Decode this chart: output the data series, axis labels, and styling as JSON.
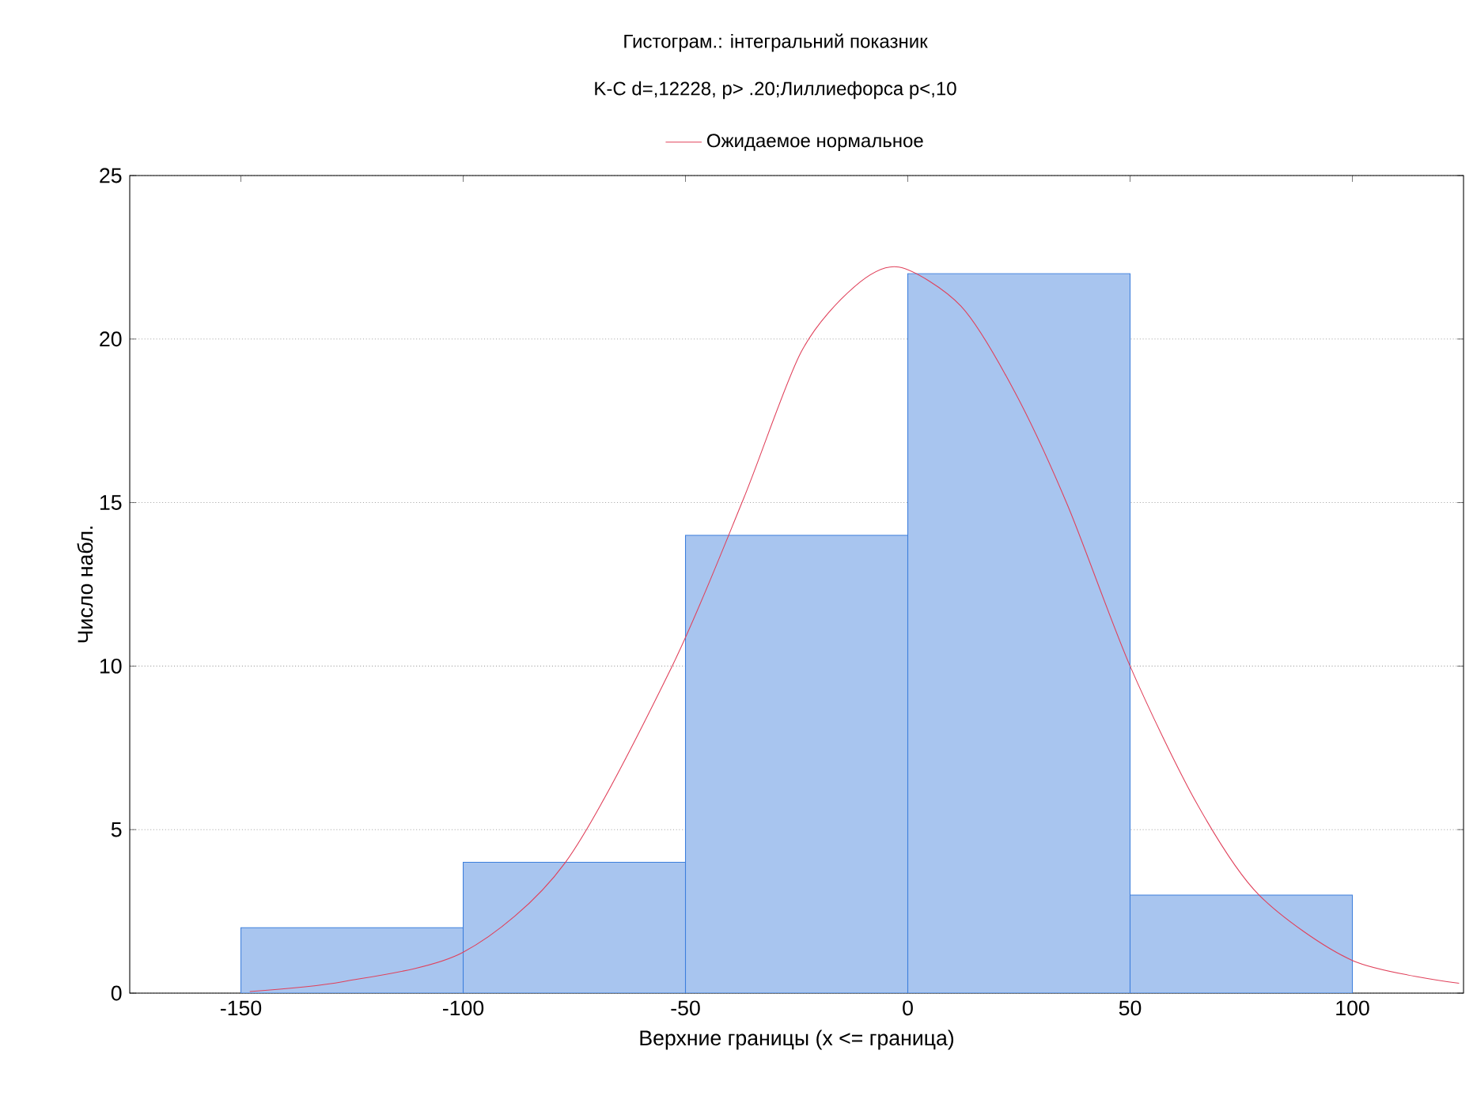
{
  "chart_data": {
    "type": "histogram",
    "title": "Гистограм.: інтегральний показник",
    "subtitle": "K-C d=,12228, p> .20;Лиллиефорса p<,10",
    "xlabel": "Верхние границы (x <= граница)",
    "ylabel": "Число набл.",
    "bins": [
      -150,
      -100,
      -50,
      0,
      50,
      100
    ],
    "values": [
      2,
      4,
      14,
      22,
      3
    ],
    "color": "#3d7fdc",
    "series": [
      {
        "type": "line",
        "name": "Ожидаемое нормальное",
        "color": "#e0405a",
        "x": [
          -148,
          -127,
          -100,
          -77,
          -53,
          -37,
          -24,
          -12,
          -2,
          12,
          24,
          36,
          50,
          65,
          79,
          100,
          124
        ],
        "values": [
          0.05,
          0.35,
          1.25,
          4.0,
          10.0,
          15.1,
          19.6,
          21.6,
          22.2,
          21.0,
          18.4,
          14.9,
          10.0,
          5.8,
          3.0,
          1.0,
          0.3
        ]
      }
    ],
    "xlim": [
      -175,
      125
    ],
    "xticks": [
      -150,
      -100,
      -50,
      0,
      50,
      100
    ],
    "ylim": [
      0,
      25
    ],
    "yticks": [
      0,
      5,
      10,
      15,
      20,
      25
    ],
    "grid": "y",
    "legend": "top"
  }
}
